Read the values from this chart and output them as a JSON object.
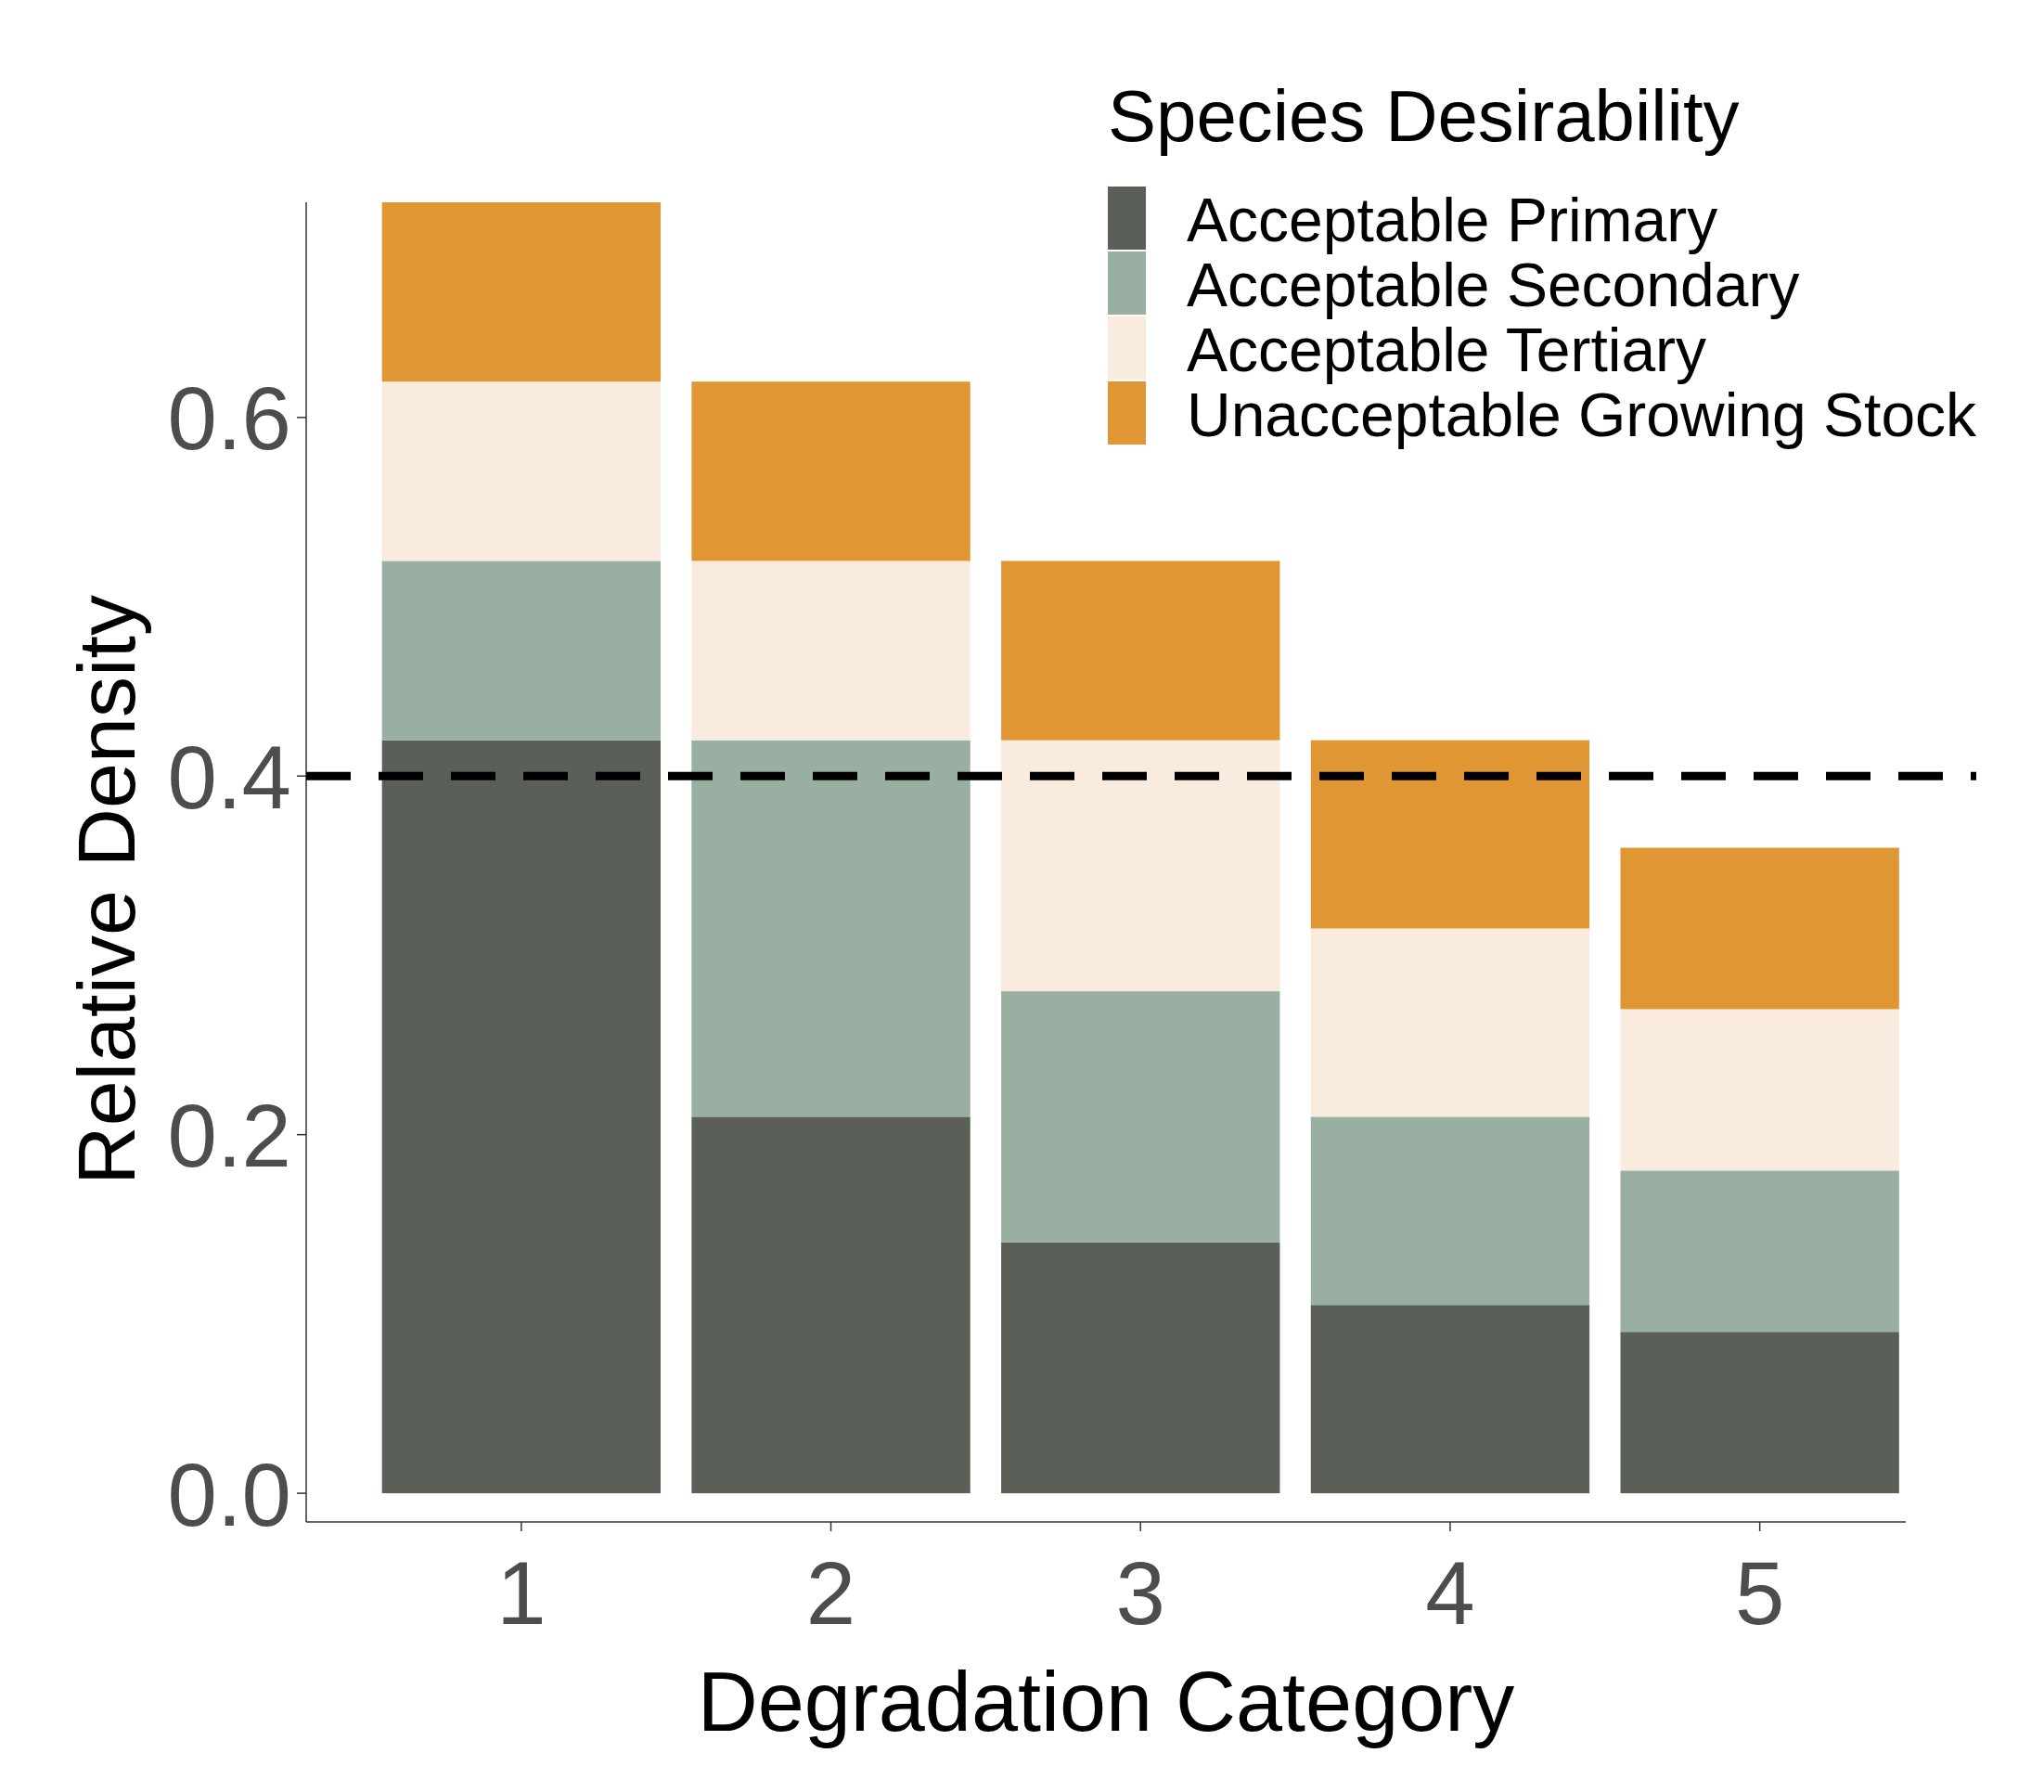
{
  "chart_data": {
    "type": "bar",
    "stacked": true,
    "xlabel": "Degradation Category",
    "ylabel": "Relative Density",
    "legend_title": "Species Desirability",
    "legend": "top right",
    "categories": [
      "1",
      "2",
      "3",
      "4",
      "5"
    ],
    "series": [
      {
        "name": "Acceptable Primary",
        "color": "#5a5f58",
        "values": [
          0.42,
          0.21,
          0.14,
          0.105,
          0.09
        ]
      },
      {
        "name": "Acceptable Secondary",
        "color": "#98afa1",
        "values": [
          0.1,
          0.21,
          0.14,
          0.105,
          0.09
        ]
      },
      {
        "name": "Acceptable Tertiary",
        "color": "#f9ecdf",
        "values": [
          0.1,
          0.1,
          0.14,
          0.105,
          0.09
        ]
      },
      {
        "name": "Unacceptable Growing Stock",
        "color": "#e09632",
        "values": [
          0.1,
          0.1,
          0.1,
          0.105,
          0.09
        ]
      }
    ],
    "ylim": [
      -0.016,
      0.72
    ],
    "yticks": [
      {
        "value": 0,
        "label": "0.0"
      },
      0.2,
      0.4,
      0.6
    ],
    "ref_lines": [
      {
        "axis": "y",
        "value": 0.4,
        "color": "#000000",
        "line_style": "dashed"
      }
    ]
  }
}
